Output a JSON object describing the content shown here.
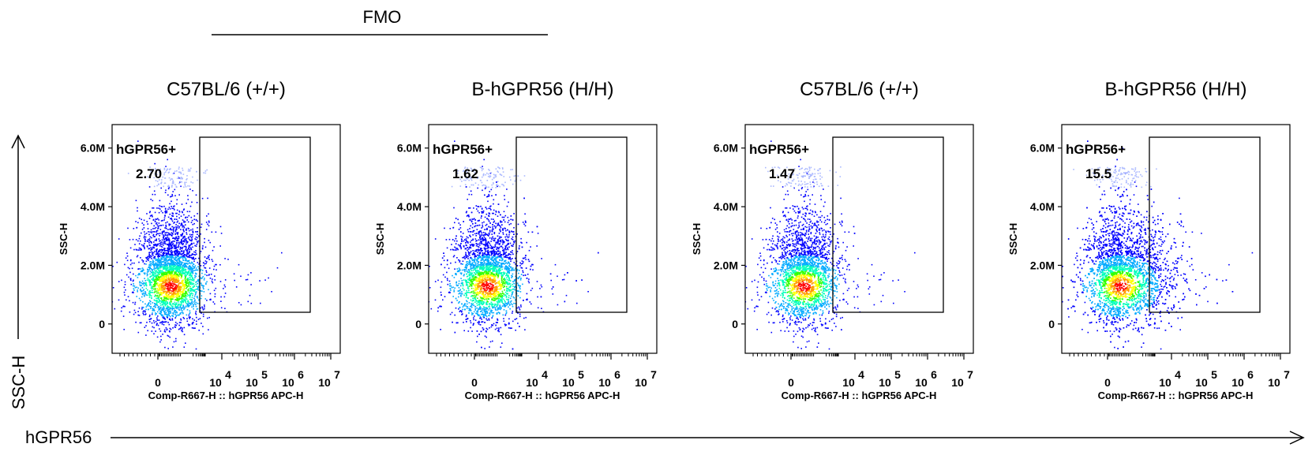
{
  "figure": {
    "fmo_label": "FMO",
    "y_side_label": "SSC-H",
    "x_side_label": "hGPR56"
  },
  "chart_data": [
    {
      "type": "scatter",
      "title": "C57BL/6 (+/+)",
      "xlabel": "Comp-R667-H :: hGPR56 APC-H",
      "ylabel": "SSC-H",
      "x_scale": "biexponential",
      "y_tick_labels": [
        "0",
        "2.0M",
        "4.0M",
        "6.0M"
      ],
      "y_ticks": [
        0,
        2000000,
        4000000,
        6000000
      ],
      "x_tick_labels": [
        {
          "base": "0",
          "exp": ""
        },
        {
          "base": "10",
          "exp": "4"
        },
        {
          "base": "10",
          "exp": "5"
        },
        {
          "base": "10",
          "exp": "6"
        },
        {
          "base": "10",
          "exp": "7"
        }
      ],
      "gate": {
        "name": "hGPR56+",
        "percent": "2.70"
      },
      "density": "medium"
    },
    {
      "type": "scatter",
      "title": "B-hGPR56 (H/H)",
      "xlabel": "Comp-R667-H :: hGPR56 APC-H",
      "ylabel": "SSC-H",
      "x_scale": "biexponential",
      "y_tick_labels": [
        "0",
        "2.0M",
        "4.0M",
        "6.0M"
      ],
      "y_ticks": [
        0,
        2000000,
        4000000,
        6000000
      ],
      "x_tick_labels": [
        {
          "base": "0",
          "exp": ""
        },
        {
          "base": "10",
          "exp": "4"
        },
        {
          "base": "10",
          "exp": "5"
        },
        {
          "base": "10",
          "exp": "6"
        },
        {
          "base": "10",
          "exp": "7"
        }
      ],
      "gate": {
        "name": "hGPR56+",
        "percent": "1.62"
      },
      "density": "medium"
    },
    {
      "type": "scatter",
      "title": "C57BL/6 (+/+)",
      "xlabel": "Comp-R667-H :: hGPR56 APC-H",
      "ylabel": "SSC-H",
      "x_scale": "biexponential",
      "y_tick_labels": [
        "0",
        "2.0M",
        "4.0M",
        "6.0M"
      ],
      "y_ticks": [
        0,
        2000000,
        4000000,
        6000000
      ],
      "x_tick_labels": [
        {
          "base": "0",
          "exp": ""
        },
        {
          "base": "10",
          "exp": "4"
        },
        {
          "base": "10",
          "exp": "5"
        },
        {
          "base": "10",
          "exp": "6"
        },
        {
          "base": "10",
          "exp": "7"
        }
      ],
      "gate": {
        "name": "hGPR56+",
        "percent": "1.47"
      },
      "density": "low"
    },
    {
      "type": "scatter",
      "title": "B-hGPR56 (H/H)",
      "xlabel": "Comp-R667-H :: hGPR56 APC-H",
      "ylabel": "SSC-H",
      "x_scale": "biexponential",
      "y_tick_labels": [
        "0",
        "2.0M",
        "4.0M",
        "6.0M"
      ],
      "y_ticks": [
        0,
        2000000,
        4000000,
        6000000
      ],
      "x_tick_labels": [
        {
          "base": "0",
          "exp": ""
        },
        {
          "base": "10",
          "exp": "4"
        },
        {
          "base": "10",
          "exp": "5"
        },
        {
          "base": "10",
          "exp": "6"
        },
        {
          "base": "10",
          "exp": "7"
        }
      ],
      "gate": {
        "name": "hGPR56+",
        "percent": "15.5"
      },
      "density": "high"
    }
  ],
  "colors": {
    "density_scale": [
      "#0000ff",
      "#00aaff",
      "#00ffbb",
      "#33ff00",
      "#ffff00",
      "#ff9900",
      "#ff0000"
    ],
    "line": "#000000"
  }
}
